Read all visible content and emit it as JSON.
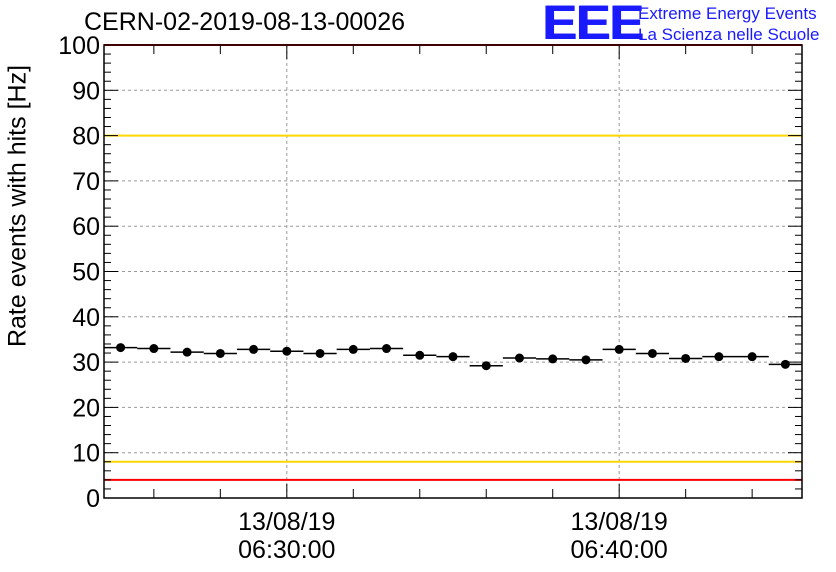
{
  "header": {
    "title": "CERN-02-2019-08-13-00026",
    "logo_text": "EEE",
    "org_line1": "Extreme Energy Events",
    "org_line2": "La Scienza nelle Scuole"
  },
  "colors": {
    "marker": "#000000",
    "red_limit": "#ff0000",
    "yellow_limit": "#ffd700",
    "logo_blue": "#1a1aff",
    "grid": "#999999"
  },
  "chart_data": {
    "type": "scatter",
    "title": "CERN-02-2019-08-13-00026",
    "xlabel": "",
    "ylabel": "Rate events with hits [Hz]",
    "ylim": [
      0,
      100
    ],
    "xlim": [
      "2019-08-13 06:24:30",
      "2019-08-13 06:45:30"
    ],
    "yticks": [
      0,
      10,
      20,
      30,
      40,
      50,
      60,
      70,
      80,
      90,
      100
    ],
    "xticks": [
      {
        "date": "13/08/19",
        "time": "06:30:00",
        "x": "2019-08-13 06:30:00"
      },
      {
        "date": "13/08/19",
        "time": "06:40:00",
        "x": "2019-08-13 06:40:00"
      }
    ],
    "grid": true,
    "bin_width_minutes": 1,
    "horizontal_lines": [
      {
        "y": 100,
        "color": "red"
      },
      {
        "y": 80,
        "color": "yellow"
      },
      {
        "y": 8,
        "color": "yellow"
      },
      {
        "y": 4,
        "color": "red"
      }
    ],
    "x": [
      "2019-08-13 06:25:00",
      "2019-08-13 06:26:00",
      "2019-08-13 06:27:00",
      "2019-08-13 06:28:00",
      "2019-08-13 06:29:00",
      "2019-08-13 06:30:00",
      "2019-08-13 06:31:00",
      "2019-08-13 06:32:00",
      "2019-08-13 06:33:00",
      "2019-08-13 06:34:00",
      "2019-08-13 06:35:00",
      "2019-08-13 06:36:00",
      "2019-08-13 06:37:00",
      "2019-08-13 06:38:00",
      "2019-08-13 06:39:00",
      "2019-08-13 06:40:00",
      "2019-08-13 06:41:00",
      "2019-08-13 06:42:00",
      "2019-08-13 06:43:00",
      "2019-08-13 06:44:00",
      "2019-08-13 06:45:00"
    ],
    "y": [
      33.2,
      33.0,
      32.2,
      31.9,
      32.8,
      32.4,
      31.9,
      32.8,
      33.0,
      31.5,
      31.2,
      29.2,
      30.9,
      30.7,
      30.5,
      32.8,
      31.9,
      30.8,
      31.2,
      31.2,
      29.5
    ]
  }
}
